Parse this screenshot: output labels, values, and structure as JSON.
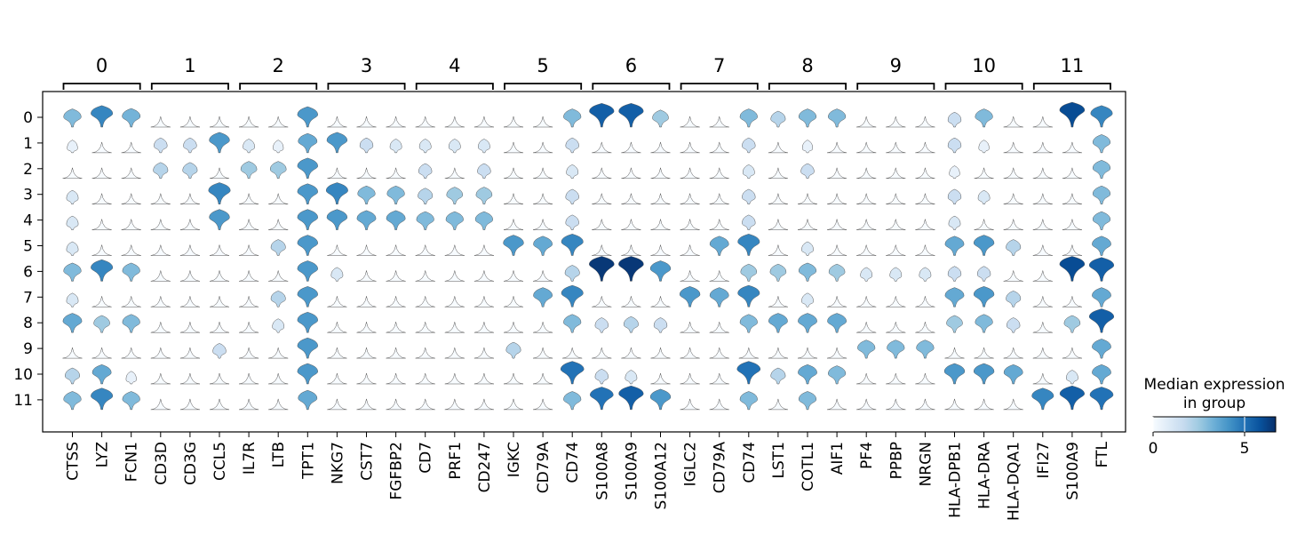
{
  "chart_data": {
    "type": "violin",
    "xlabel": "",
    "ylabel": "",
    "group_labels": [
      "0",
      "1",
      "2",
      "3",
      "4",
      "5",
      "6",
      "7",
      "8",
      "9",
      "10",
      "11"
    ],
    "row_labels": [
      "0",
      "1",
      "2",
      "3",
      "4",
      "5",
      "6",
      "7",
      "8",
      "9",
      "10",
      "11"
    ],
    "gene_groups": [
      {
        "label": "0",
        "genes": [
          "CTSS",
          "LYZ",
          "FCN1"
        ]
      },
      {
        "label": "1",
        "genes": [
          "CD3D",
          "CD3G",
          "CCL5"
        ]
      },
      {
        "label": "2",
        "genes": [
          "IL7R",
          "LTB",
          "TPT1"
        ]
      },
      {
        "label": "3",
        "genes": [
          "NKG7",
          "CST7",
          "FGFBP2"
        ]
      },
      {
        "label": "4",
        "genes": [
          "CD7",
          "PRF1",
          "CD247"
        ]
      },
      {
        "label": "5",
        "genes": [
          "IGKC",
          "CD79A",
          "CD74"
        ]
      },
      {
        "label": "6",
        "genes": [
          "S100A8",
          "S100A9",
          "S100A12"
        ]
      },
      {
        "label": "7",
        "genes": [
          "IGLC2",
          "CD79A",
          "CD74"
        ]
      },
      {
        "label": "8",
        "genes": [
          "LST1",
          "COTL1",
          "AIF1"
        ]
      },
      {
        "label": "9",
        "genes": [
          "PF4",
          "PPBP",
          "NRGN"
        ]
      },
      {
        "label": "10",
        "genes": [
          "HLA-DPB1",
          "HLA-DRA",
          "HLA-DQA1"
        ]
      },
      {
        "label": "11",
        "genes": [
          "IFI27",
          "S100A9",
          "FTL"
        ]
      }
    ],
    "genes": [
      "CTSS",
      "LYZ",
      "FCN1",
      "CD3D",
      "CD3G",
      "CCL5",
      "IL7R",
      "LTB",
      "TPT1",
      "NKG7",
      "CST7",
      "FGFBP2",
      "CD7",
      "PRF1",
      "CD247",
      "IGKC",
      "CD79A",
      "CD74",
      "S100A8",
      "S100A9",
      "S100A12",
      "IGLC2",
      "CD79A",
      "CD74",
      "LST1",
      "COTL1",
      "AIF1",
      "PF4",
      "PPBP",
      "NRGN",
      "HLA-DPB1",
      "HLA-DRA",
      "HLA-DQA1",
      "IFI27",
      "S100A9",
      "FTL"
    ],
    "median_expression": [
      [
        3.0,
        4.5,
        3.2,
        0,
        0,
        0,
        0,
        0,
        4.0,
        0,
        0,
        0,
        0,
        0,
        0,
        0,
        0,
        3.0,
        5.5,
        5.5,
        2.5,
        0,
        0,
        3.0,
        2.0,
        3.0,
        3.0,
        0,
        0,
        0,
        1.5,
        3.0,
        0,
        0,
        6.0,
        4.5
      ],
      [
        0.5,
        0,
        0,
        1.5,
        1.5,
        4.0,
        1.0,
        0.5,
        3.5,
        4.0,
        1.5,
        1.0,
        1.0,
        1.0,
        1.0,
        0,
        0,
        1.5,
        0,
        0,
        0,
        0,
        0,
        1.5,
        0,
        0.5,
        0,
        0,
        0,
        0,
        1.5,
        0.5,
        0,
        0,
        0,
        3.0
      ],
      [
        0,
        0,
        0,
        2.0,
        2.0,
        0,
        2.5,
        2.5,
        4.0,
        0,
        0,
        0,
        1.5,
        0,
        1.5,
        0,
        0,
        1.0,
        0,
        0,
        0,
        0,
        0,
        1.0,
        0,
        1.5,
        0,
        0,
        0,
        0,
        0.5,
        0,
        0,
        0,
        0,
        3.0
      ],
      [
        1.0,
        0,
        0,
        0,
        0,
        4.5,
        0,
        0,
        4.0,
        4.5,
        3.0,
        3.0,
        2.0,
        2.5,
        2.5,
        0,
        0,
        1.5,
        0,
        0,
        0,
        0,
        0,
        1.5,
        0,
        0,
        0,
        0,
        0,
        0,
        1.5,
        1.0,
        0,
        0,
        0,
        3.0
      ],
      [
        1.0,
        0,
        0,
        0,
        0,
        4.0,
        0,
        0,
        4.0,
        4.0,
        3.5,
        3.5,
        3.0,
        3.0,
        3.0,
        0,
        0,
        1.5,
        0,
        0,
        0,
        0,
        0,
        1.5,
        0,
        0,
        0,
        0,
        0,
        0,
        1.0,
        0,
        0,
        0,
        0,
        3.0
      ],
      [
        1.0,
        0,
        0,
        0,
        0,
        0,
        0,
        2.0,
        4.0,
        0,
        0,
        0,
        0,
        0,
        0,
        4.0,
        3.5,
        4.5,
        0,
        0,
        0,
        0,
        3.5,
        4.5,
        0,
        1.0,
        0,
        0,
        0,
        0,
        3.5,
        4.0,
        2.0,
        0,
        0,
        3.5
      ],
      [
        3.0,
        4.5,
        3.0,
        0,
        0,
        0,
        0,
        0,
        4.0,
        1.0,
        0,
        0,
        0,
        0,
        0,
        0,
        0,
        2.0,
        6.5,
        6.5,
        4.0,
        0,
        0,
        2.5,
        2.5,
        3.0,
        2.5,
        1.0,
        1.0,
        1.0,
        1.5,
        1.5,
        0,
        0,
        6.0,
        5.5
      ],
      [
        1.0,
        0,
        0,
        0,
        0,
        0,
        0,
        2.0,
        4.0,
        0,
        0,
        0,
        0,
        0,
        0,
        0,
        3.5,
        4.5,
        0,
        0,
        0,
        4.0,
        3.5,
        4.5,
        0,
        1.0,
        0,
        0,
        0,
        0,
        3.5,
        4.0,
        2.0,
        0,
        0,
        3.5
      ],
      [
        3.5,
        2.5,
        3.0,
        0,
        0,
        0,
        0,
        1.0,
        4.0,
        0,
        0,
        0,
        0,
        0,
        0,
        0,
        0,
        3.0,
        1.5,
        2.0,
        1.5,
        0,
        0,
        3.0,
        3.5,
        3.5,
        3.5,
        0,
        0,
        0,
        2.5,
        3.0,
        1.5,
        0,
        2.5,
        5.5
      ],
      [
        0,
        0,
        0,
        0,
        0,
        1.5,
        0,
        0,
        4.0,
        0,
        0,
        0,
        0,
        0,
        0,
        2.0,
        0,
        0,
        0,
        0,
        0,
        0,
        0,
        0,
        0,
        0,
        0,
        3.0,
        3.0,
        3.0,
        0,
        0,
        0,
        0,
        0,
        3.5
      ],
      [
        2.0,
        3.5,
        0.5,
        0,
        0,
        0,
        0,
        0,
        4.0,
        0,
        0,
        0,
        0,
        0,
        0,
        0,
        0,
        5.0,
        1.5,
        1.0,
        0,
        0,
        0,
        5.0,
        2.0,
        3.5,
        3.0,
        0,
        0,
        0,
        4.0,
        4.0,
        3.5,
        0,
        1.0,
        3.5
      ],
      [
        3.0,
        4.5,
        3.0,
        0,
        0,
        0,
        0,
        0,
        3.5,
        0,
        0,
        0,
        0,
        0,
        0,
        0,
        0,
        3.0,
        5.0,
        5.5,
        4.0,
        0,
        0,
        3.0,
        0,
        3.0,
        0,
        0,
        0,
        0,
        0,
        0,
        0,
        4.5,
        5.5,
        5.0
      ]
    ],
    "colorbar": {
      "title_line1": "Median expression",
      "title_line2": "in group",
      "ticks": [
        "0",
        "5"
      ],
      "tick_values": [
        0,
        5
      ],
      "range": [
        0,
        6.7
      ],
      "colormap": "Blues"
    },
    "colors": {
      "outline": "#555555",
      "frame": "#000000",
      "low": "#f7fbff",
      "high": "#08306b"
    }
  }
}
